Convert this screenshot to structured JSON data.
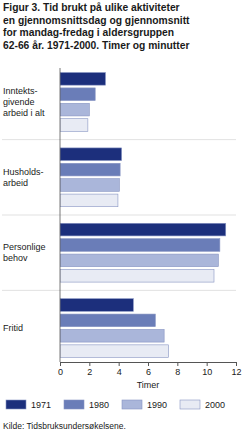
{
  "chart_data": {
    "type": "bar",
    "orientation": "horizontal",
    "title": "Figur 3. Tid brukt på ulike aktiviteter\nen gjennomsnittsdag og gjennomsnitt\nfor mandag-fredag i aldersgruppen\n62-66 år. 1971-2000. Timer og minutter",
    "categories": [
      "Inntekts-\ngivende\narbeid i alt",
      "Husholds-\narbeid",
      "Personlige\nbehov",
      "Fritid"
    ],
    "series": [
      {
        "name": "1971",
        "color": "#1c2f7c",
        "values": [
          3.1,
          4.2,
          11.3,
          5.0
        ]
      },
      {
        "name": "1980",
        "color": "#6a7db8",
        "values": [
          2.4,
          4.1,
          10.9,
          6.5
        ]
      },
      {
        "name": "1990",
        "color": "#aab6da",
        "values": [
          2.0,
          4.05,
          10.8,
          7.1
        ]
      },
      {
        "name": "2000",
        "color": "#e8ebf4",
        "values": [
          1.9,
          3.95,
          10.5,
          7.4
        ]
      }
    ],
    "x_label": "Timer",
    "xlim": [
      0,
      12
    ],
    "xticks": [
      0,
      2,
      4,
      6,
      8,
      10,
      12
    ],
    "grid": false,
    "legend": "bottom",
    "source": "Kilde: Tidsbruksundersøkelsene."
  }
}
